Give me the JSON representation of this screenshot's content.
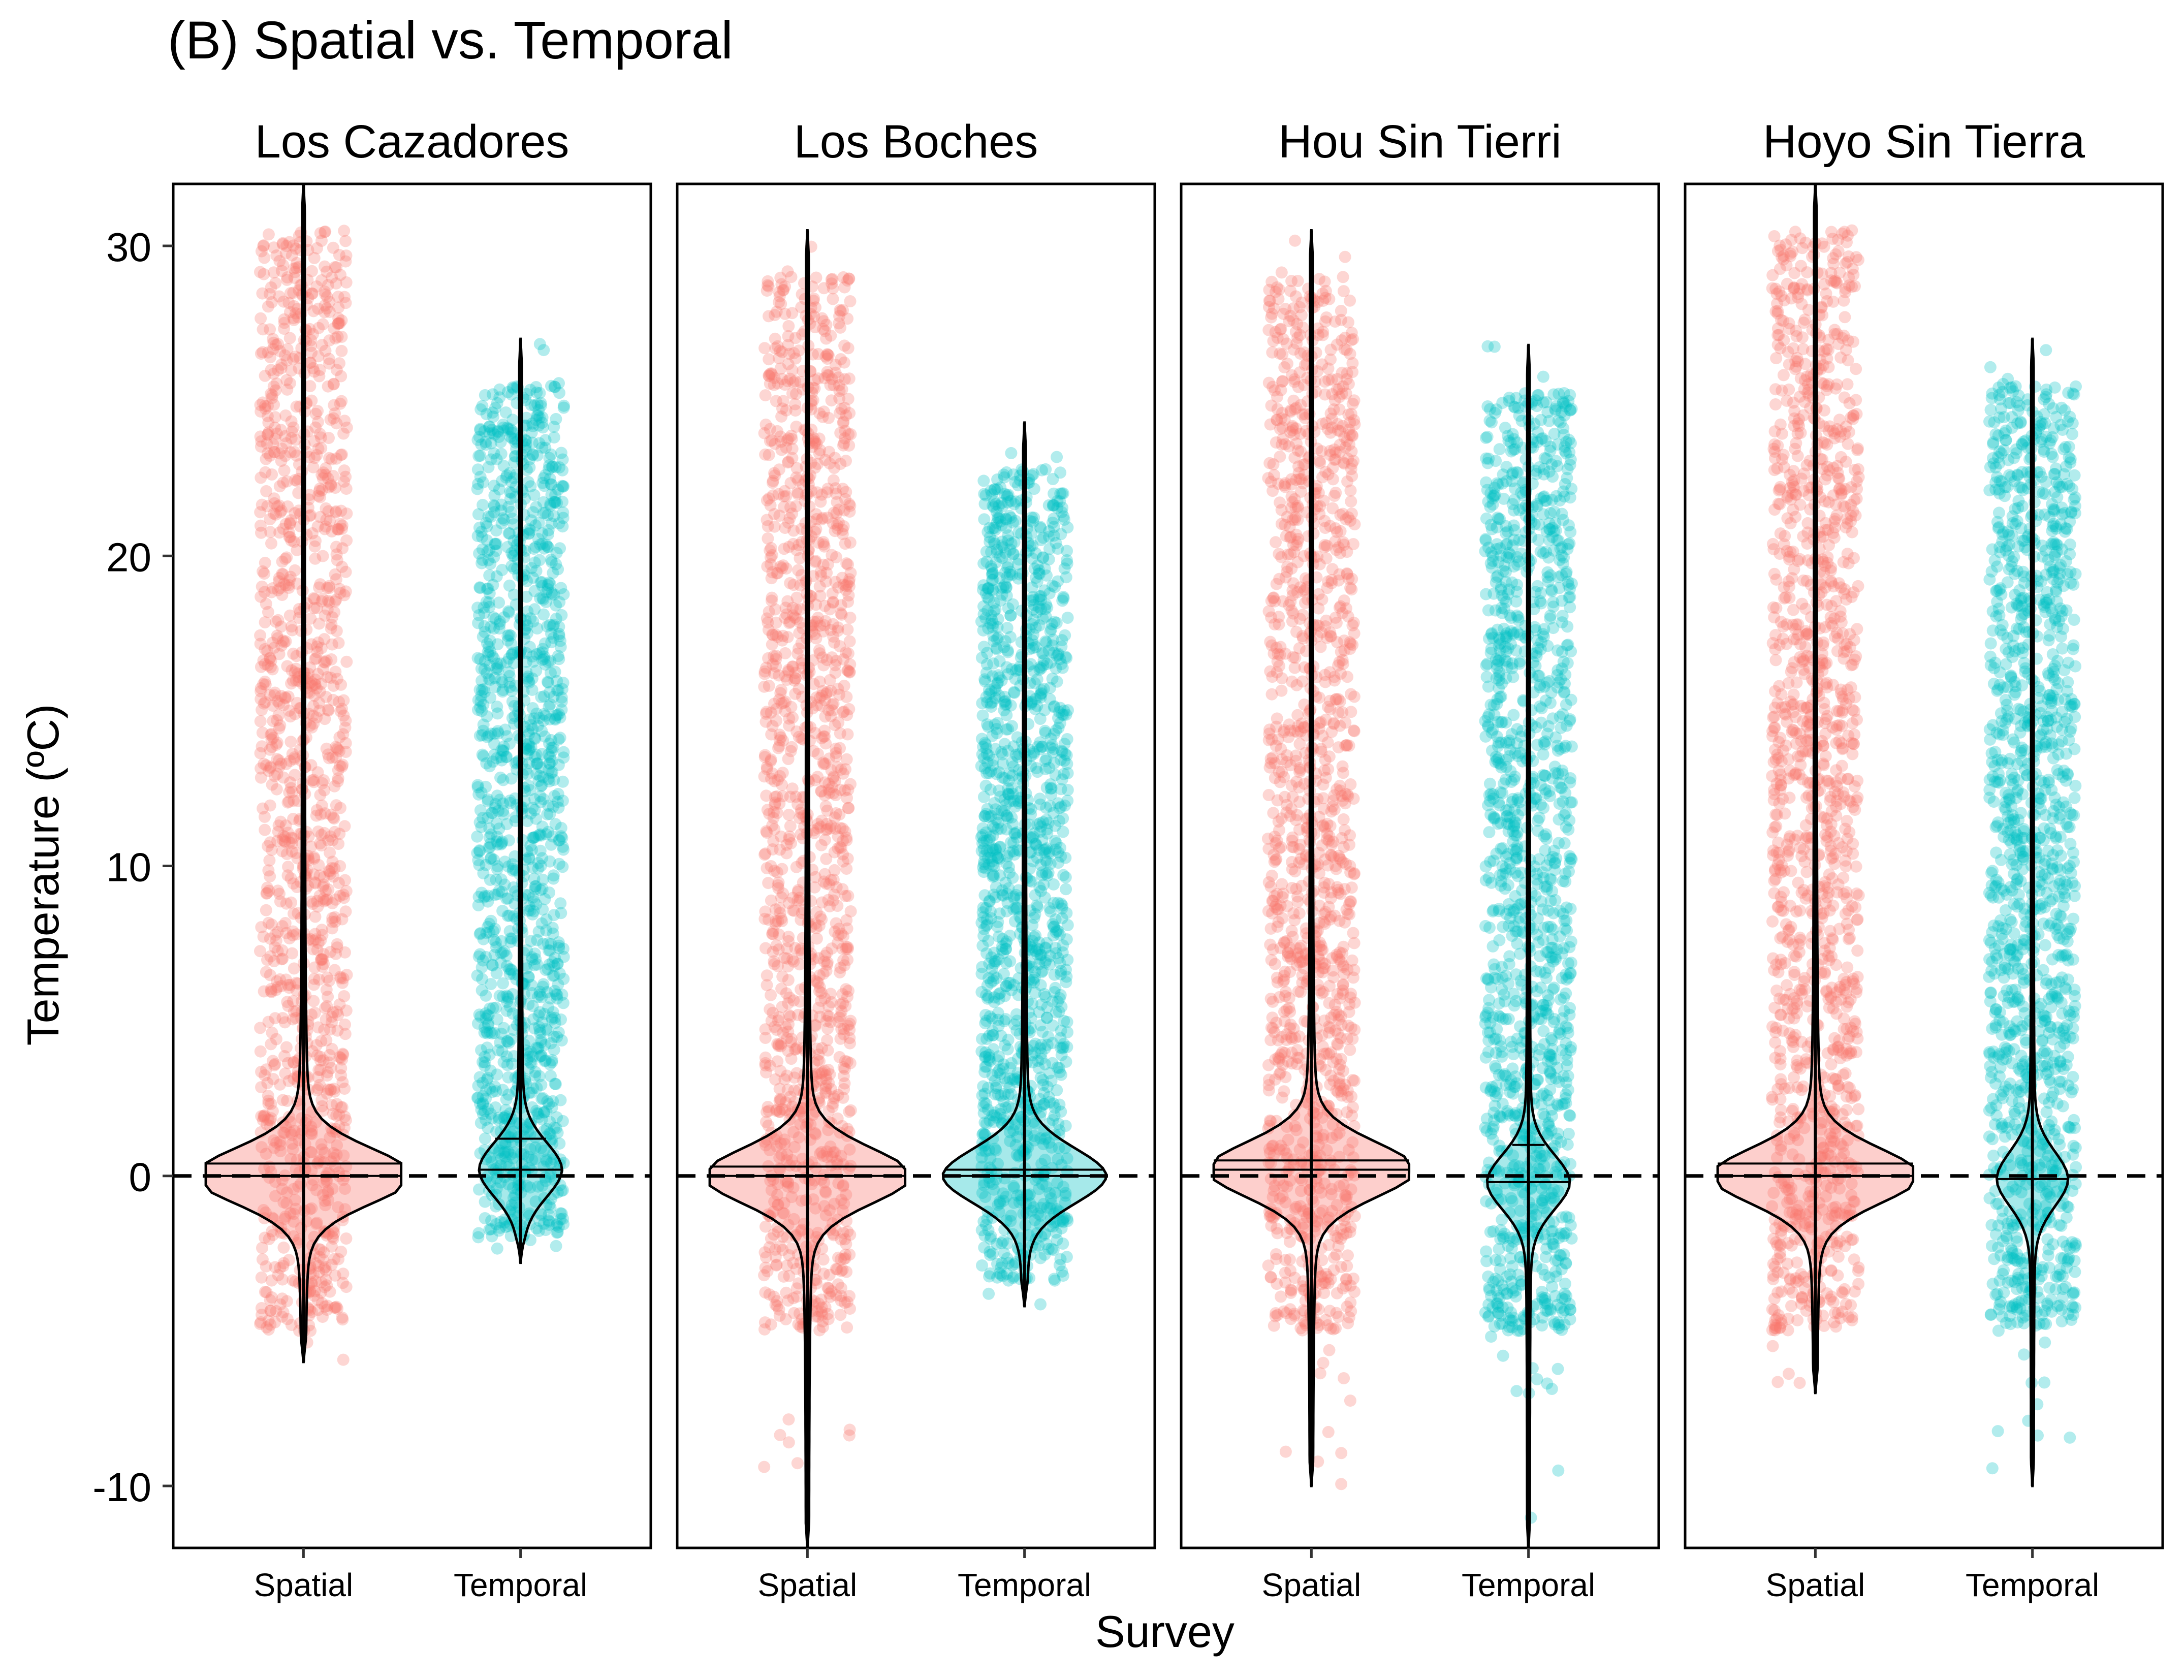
{
  "title": "(B) Spatial vs. Temporal",
  "chart_data": {
    "type": "violin",
    "title": "(B) Spatial vs. Temporal",
    "xlabel": "Survey",
    "ylabel": "Temperature (ºC)",
    "ylim": [
      -12,
      32
    ],
    "yticks": [
      -10,
      0,
      10,
      20,
      30
    ],
    "reference_line": {
      "y": 0,
      "style": "dashed"
    },
    "grid": false,
    "legend": "none",
    "colors": {
      "Spatial": "#F8766D",
      "Temporal": "#00BFC4"
    },
    "categories": [
      "Spatial",
      "Temporal"
    ],
    "panels": [
      {
        "name": "Los Cazadores",
        "groups": [
          {
            "survey": "Spatial",
            "min": -6,
            "max": 32,
            "median": 0.0,
            "mean": 0.4,
            "peak_width": 0.95
          },
          {
            "survey": "Temporal",
            "min": -2.8,
            "max": 27,
            "median": 0.2,
            "mean": 1.2,
            "peak_width": 0.35
          }
        ]
      },
      {
        "name": "Los Boches",
        "groups": [
          {
            "survey": "Spatial",
            "min": -12,
            "max": 30.5,
            "median": 0.0,
            "mean": 0.3,
            "peak_width": 0.9
          },
          {
            "survey": "Temporal",
            "min": -4.2,
            "max": 24.3,
            "median": 0.0,
            "mean": 0.2,
            "peak_width": 0.7
          }
        ]
      },
      {
        "name": "Hou Sin Tierri",
        "groups": [
          {
            "survey": "Spatial",
            "min": -10,
            "max": 30.5,
            "median": 0.2,
            "mean": 0.5,
            "peak_width": 0.9
          },
          {
            "survey": "Temporal",
            "min": -12,
            "max": 26.8,
            "median": -0.2,
            "mean": 1.0,
            "peak_width": 0.35
          }
        ]
      },
      {
        "name": "Hoyo Sin Tierra",
        "groups": [
          {
            "survey": "Spatial",
            "min": -7,
            "max": 32,
            "median": 0.0,
            "mean": 0.4,
            "peak_width": 0.9
          },
          {
            "survey": "Temporal",
            "min": -10,
            "max": 27,
            "median": -0.1,
            "mean": 2.5,
            "peak_width": 0.3
          }
        ]
      }
    ]
  }
}
